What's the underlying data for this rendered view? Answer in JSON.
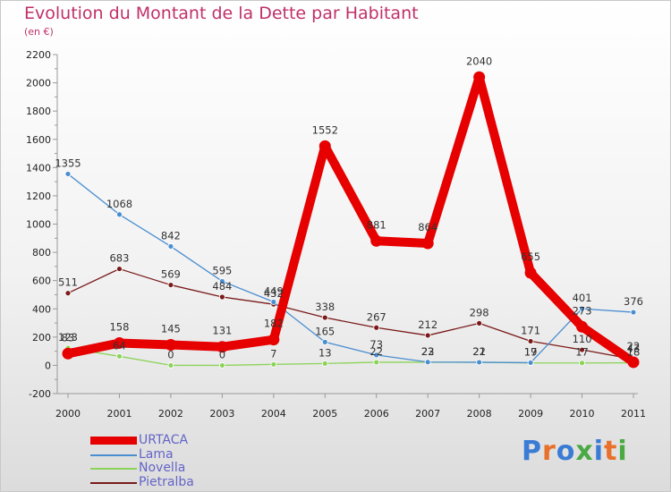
{
  "header": {
    "title": "Evolution du Montant de la Dette par Habitant",
    "subtitle": "(en €)"
  },
  "logo": {
    "text": "Proxiti",
    "letter_colors": [
      "#3a7bd5",
      "#e8702a",
      "#3a7bd5",
      "#49a942",
      "#3a7bd5",
      "#e8702a",
      "#49a942"
    ]
  },
  "chart_data": {
    "type": "line",
    "title": "Evolution du Montant de la Dette par Habitant",
    "subtitle": "(en €)",
    "x": [
      "2000",
      "2001",
      "2002",
      "2003",
      "2004",
      "2005",
      "2006",
      "2007",
      "2008",
      "2009",
      "2010",
      "2011"
    ],
    "ylim": [
      -200,
      2200
    ],
    "yticks": [
      "-200",
      "0",
      "200",
      "400",
      "600",
      "800",
      "1000",
      "1200",
      "1400",
      "1600",
      "1800",
      "2000",
      "2200"
    ],
    "grid": false,
    "legend_position": "bottom-left",
    "series": [
      {
        "name": "Pietralba",
        "color": "#7a1a1a",
        "values": [
          511,
          683,
          569,
          484,
          432,
          338,
          267,
          212,
          298,
          171,
          110,
          43
        ],
        "labels": [
          "511",
          "683",
          "569",
          "484",
          "432",
          "338",
          "267",
          "212",
          "298",
          "171",
          "110",
          "43"
        ]
      },
      {
        "name": "Novella",
        "color": "#8cd35a",
        "values": [
          123,
          64,
          0,
          0,
          7,
          13,
          22,
          22,
          21,
          17,
          17,
          18
        ],
        "labels": [
          "123",
          "64",
          "0",
          "0",
          "7",
          "13",
          "22",
          "22",
          "21",
          "17",
          "17",
          "18"
        ]
      },
      {
        "name": "Lama",
        "color": "#4a8ed0",
        "values": [
          1355,
          1068,
          842,
          595,
          449,
          165,
          73,
          23,
          22,
          19,
          401,
          376
        ],
        "labels": [
          "1355",
          "1068",
          "842",
          "595",
          "449",
          "165",
          "73",
          "23",
          "22",
          "19",
          "401",
          "376"
        ]
      },
      {
        "name": "URTACA",
        "color": "#e60000",
        "values": [
          83,
          158,
          145,
          131,
          182,
          1552,
          881,
          864,
          2040,
          655,
          273,
          22
        ],
        "labels": [
          "83",
          "158",
          "145",
          "131",
          "182",
          "1552",
          "881",
          "864",
          "2040",
          "655",
          "273",
          "22"
        ]
      }
    ],
    "legend": [
      "URTACA",
      "Lama",
      "Novella",
      "Pietralba"
    ]
  }
}
